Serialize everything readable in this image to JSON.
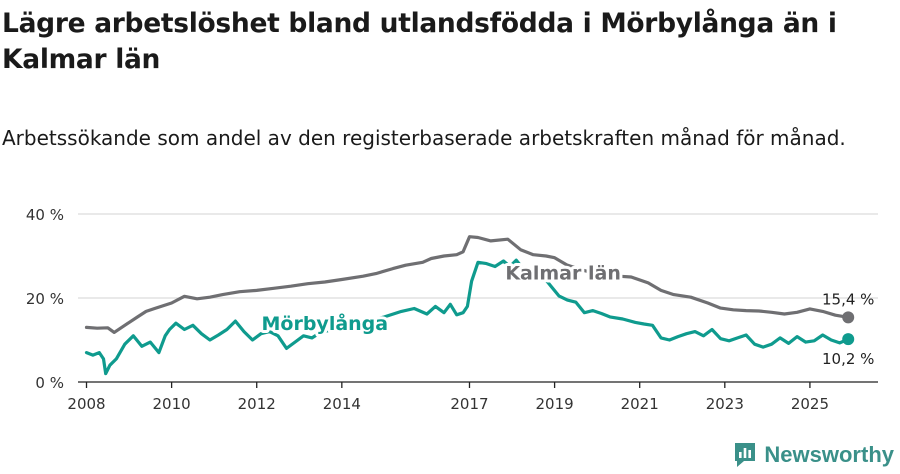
{
  "title": "Lägre arbetslöshet bland utlandsfödda i Mörbylånga än i Kalmar län",
  "subtitle": "Arbetssökande som andel av den registerbaserade arbetskraften månad för månad.",
  "brand": {
    "name": "Newsworthy",
    "color": "#3a9089"
  },
  "chart_data": {
    "type": "line",
    "title": "Lägre arbetslöshet bland utlandsfödda i Mörbylånga än i Kalmar län",
    "xlabel": "",
    "ylabel": "",
    "xlim": [
      2007.8,
      2026.6
    ],
    "ylim": [
      0,
      40
    ],
    "y_ticks": [
      0,
      20,
      40
    ],
    "y_tick_labels": [
      "0 %",
      "20 %",
      "40 %"
    ],
    "x_ticks": [
      2008,
      2010,
      2012,
      2014,
      2017,
      2019,
      2021,
      2023,
      2025
    ],
    "x_tick_labels": [
      "2008",
      "2010",
      "2012",
      "2014",
      "2017",
      "2019",
      "2021",
      "2023",
      "2025"
    ],
    "grid": true,
    "series": [
      {
        "name": "Kalmar län",
        "color": "#6f6f72",
        "end_label": "15,4 %",
        "x": [
          2008.0,
          2008.25,
          2008.5,
          2008.65,
          2008.9,
          2009.2,
          2009.4,
          2009.6,
          2010.0,
          2010.3,
          2010.6,
          2010.9,
          2011.2,
          2011.6,
          2012.0,
          2012.4,
          2012.8,
          2013.2,
          2013.6,
          2014.0,
          2014.5,
          2014.8,
          2015.2,
          2015.5,
          2015.9,
          2016.1,
          2016.4,
          2016.7,
          2016.85,
          2017.0,
          2017.2,
          2017.5,
          2017.9,
          2018.2,
          2018.5,
          2018.8,
          2019.0,
          2019.3,
          2019.6,
          2019.9,
          2020.2,
          2020.5,
          2020.8,
          2021.2,
          2021.5,
          2021.8,
          2022.2,
          2022.6,
          2022.9,
          2023.2,
          2023.5,
          2023.8,
          2024.1,
          2024.4,
          2024.7,
          2025.0,
          2025.3,
          2025.6,
          2025.9
        ],
        "values": [
          13.0,
          12.8,
          12.9,
          11.8,
          13.5,
          15.5,
          16.8,
          17.5,
          18.8,
          20.4,
          19.8,
          20.2,
          20.8,
          21.5,
          21.8,
          22.3,
          22.8,
          23.4,
          23.8,
          24.4,
          25.2,
          25.8,
          27.0,
          27.8,
          28.5,
          29.4,
          30.0,
          30.3,
          31.0,
          34.6,
          34.4,
          33.6,
          34.0,
          31.5,
          30.3,
          30.0,
          29.6,
          27.8,
          26.8,
          26.0,
          25.6,
          25.2,
          25.0,
          23.6,
          21.8,
          20.8,
          20.2,
          18.8,
          17.6,
          17.2,
          17.0,
          16.9,
          16.6,
          16.2,
          16.6,
          17.4,
          16.8,
          15.9,
          15.4
        ]
      },
      {
        "name": "Mörbylånga",
        "color": "#0f9b8e",
        "end_label": "10,2 %",
        "x": [
          2008.0,
          2008.15,
          2008.3,
          2008.4,
          2008.45,
          2008.55,
          2008.7,
          2008.9,
          2009.1,
          2009.3,
          2009.5,
          2009.7,
          2009.85,
          2009.95,
          2010.1,
          2010.3,
          2010.5,
          2010.7,
          2010.9,
          2011.1,
          2011.3,
          2011.5,
          2011.7,
          2011.9,
          2012.1,
          2012.3,
          2012.5,
          2012.7,
          2012.9,
          2013.1,
          2013.3,
          2013.5,
          2013.8,
          2014.0,
          2014.3,
          2014.6,
          2015.0,
          2015.4,
          2015.7,
          2016.0,
          2016.2,
          2016.4,
          2016.55,
          2016.7,
          2016.85,
          2016.95,
          2017.05,
          2017.2,
          2017.4,
          2017.6,
          2017.8,
          2017.95,
          2018.1,
          2018.3,
          2018.5,
          2018.7,
          2018.9,
          2019.1,
          2019.3,
          2019.5,
          2019.7,
          2019.9,
          2020.1,
          2020.3,
          2020.6,
          2020.9,
          2021.1,
          2021.3,
          2021.5,
          2021.7,
          2021.9,
          2022.1,
          2022.3,
          2022.5,
          2022.7,
          2022.9,
          2023.1,
          2023.3,
          2023.5,
          2023.7,
          2023.9,
          2024.1,
          2024.3,
          2024.5,
          2024.7,
          2024.9,
          2025.1,
          2025.3,
          2025.5,
          2025.7,
          2025.9
        ],
        "values": [
          7.0,
          6.4,
          7.0,
          5.5,
          2.0,
          4.0,
          5.5,
          9.0,
          11.0,
          8.5,
          9.5,
          7.0,
          11.0,
          12.5,
          14.0,
          12.5,
          13.5,
          11.5,
          10.0,
          11.2,
          12.5,
          14.5,
          12.0,
          10.0,
          11.5,
          12.0,
          11.0,
          8.0,
          9.5,
          11.0,
          10.5,
          11.8,
          12.5,
          12.8,
          13.5,
          14.5,
          15.5,
          16.8,
          17.5,
          16.2,
          18.0,
          16.5,
          18.5,
          16.0,
          16.5,
          18.0,
          24.0,
          28.5,
          28.2,
          27.5,
          28.8,
          27.5,
          29.0,
          26.5,
          24.5,
          25.5,
          23.0,
          20.5,
          19.5,
          19.0,
          16.5,
          17.0,
          16.3,
          15.5,
          15.0,
          14.2,
          13.8,
          13.5,
          10.5,
          10.0,
          10.8,
          11.5,
          12.0,
          11.0,
          12.5,
          10.3,
          9.8,
          10.5,
          11.2,
          9.0,
          8.3,
          9.0,
          10.5,
          9.2,
          10.8,
          9.5,
          9.8,
          11.2,
          10.0,
          9.3,
          10.2
        ]
      }
    ],
    "annotations": [
      {
        "text": "Kalmar län",
        "series": "Kalmar län"
      },
      {
        "text": "Mörbylånga",
        "series": "Mörbylånga"
      }
    ]
  }
}
